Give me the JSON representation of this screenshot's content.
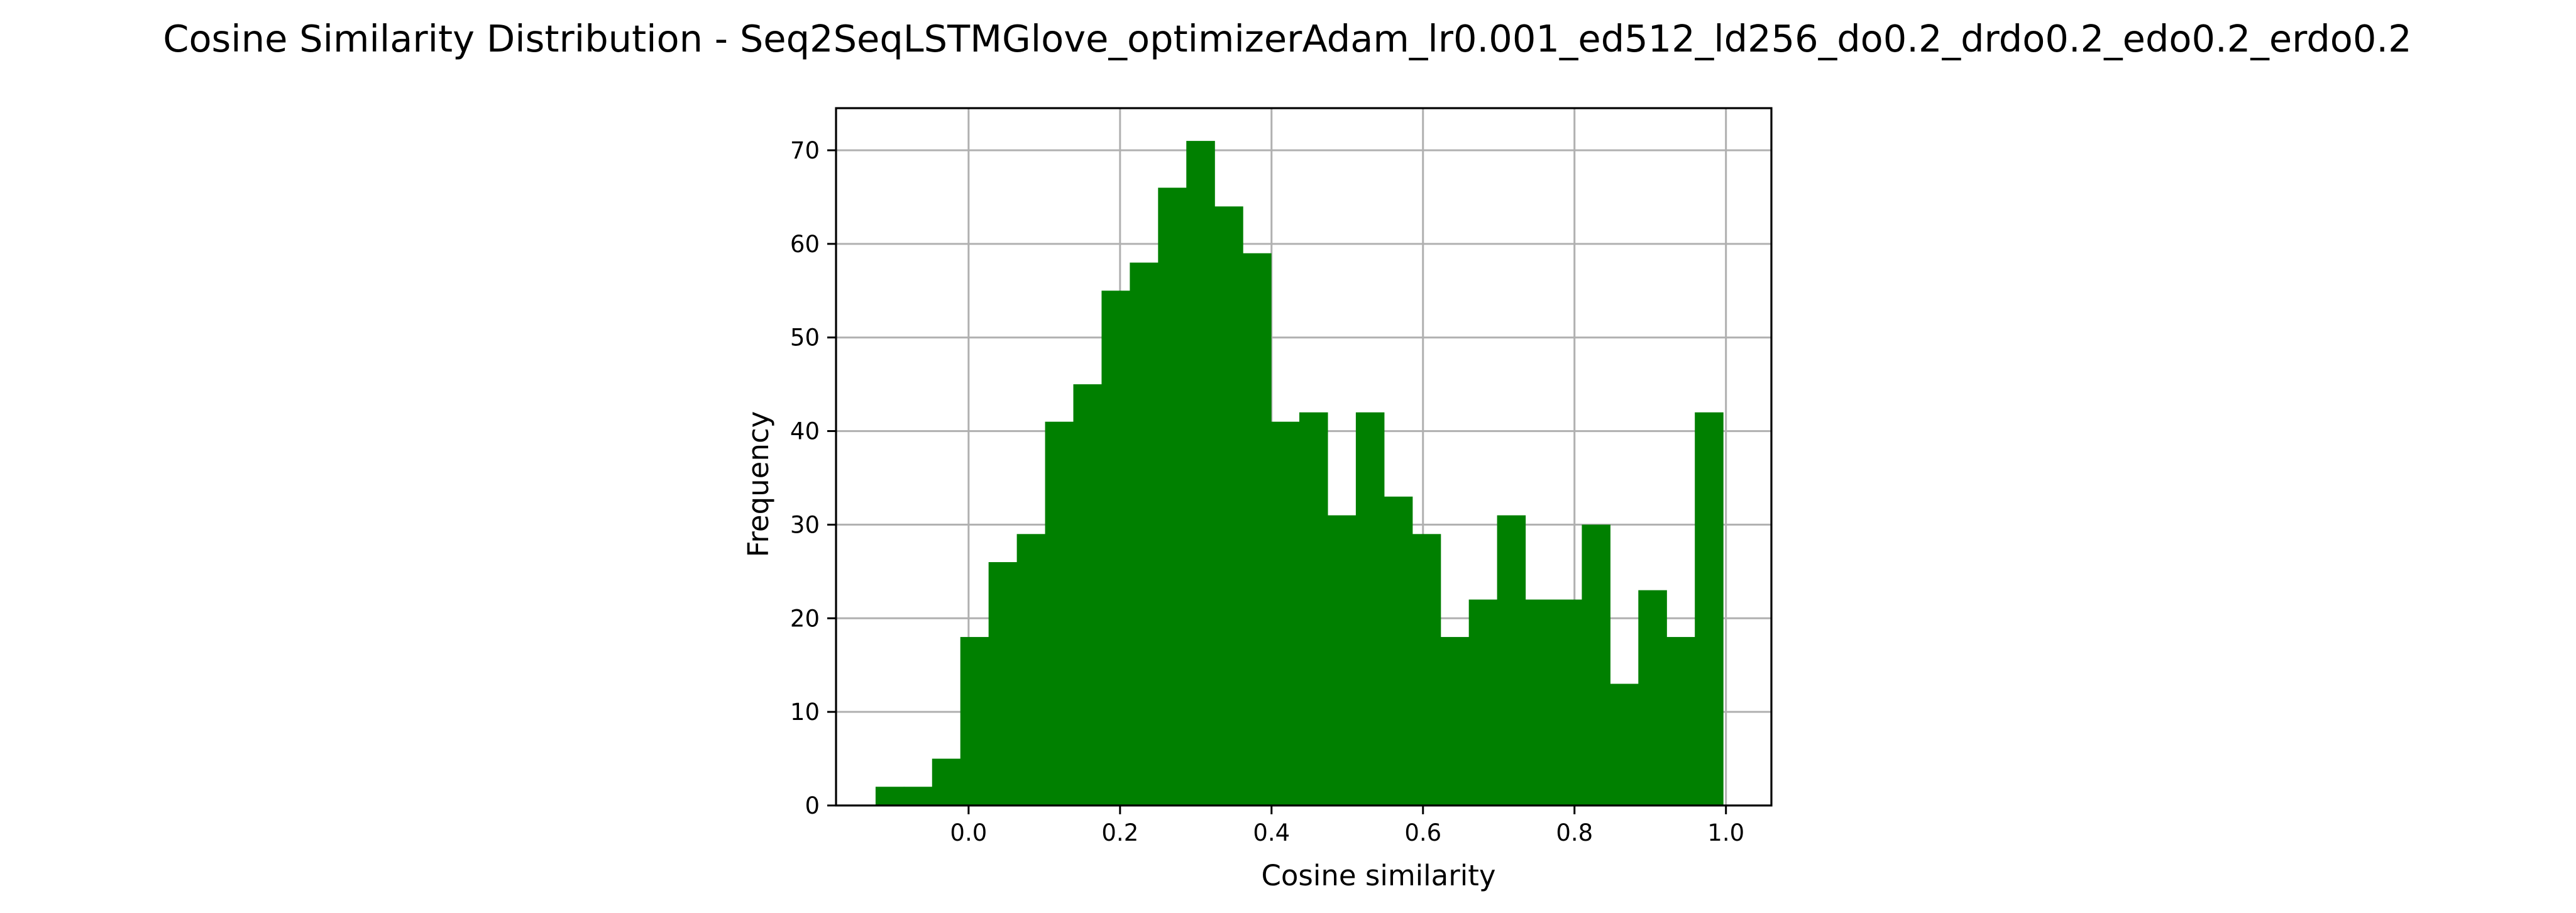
{
  "chart_data": {
    "type": "bar",
    "title": "Cosine Similarity Distribution - Seq2SeqLSTMGlove_optimizerAdam_lr0.001_ed512_ld256_do0.2_drdo0.2_edo0.2_erdo0.2",
    "xlabel": "Cosine similarity",
    "ylabel": "Frequency",
    "xlim": [
      -0.175,
      1.06
    ],
    "ylim": [
      0,
      74.5
    ],
    "x_ticks": [
      0.0,
      0.2,
      0.4,
      0.6,
      0.8,
      1.0
    ],
    "x_tick_labels": [
      "0.0",
      "0.2",
      "0.4",
      "0.6",
      "0.8",
      "1.0"
    ],
    "y_ticks": [
      0,
      10,
      20,
      30,
      40,
      50,
      60,
      70
    ],
    "y_tick_labels": [
      "0",
      "10",
      "20",
      "30",
      "40",
      "50",
      "60",
      "70"
    ],
    "grid": true,
    "bar_color": "#008000",
    "bin_edges": [
      -0.1228,
      -0.0855,
      -0.0482,
      -0.0109,
      0.0264,
      0.0637,
      0.101,
      0.1383,
      0.1756,
      0.2129,
      0.2502,
      0.2875,
      0.3248,
      0.3621,
      0.3994,
      0.4367,
      0.474,
      0.5113,
      0.5486,
      0.5859,
      0.6232,
      0.6605,
      0.6978,
      0.7351,
      0.7724,
      0.8097,
      0.847,
      0.8843,
      0.9216,
      0.9589,
      0.9962
    ],
    "values": [
      2,
      2,
      5,
      18,
      26,
      29,
      41,
      45,
      55,
      58,
      66,
      71,
      64,
      59,
      41,
      42,
      31,
      42,
      33,
      29,
      18,
      22,
      31,
      22,
      22,
      30,
      13,
      23,
      18,
      42
    ]
  }
}
